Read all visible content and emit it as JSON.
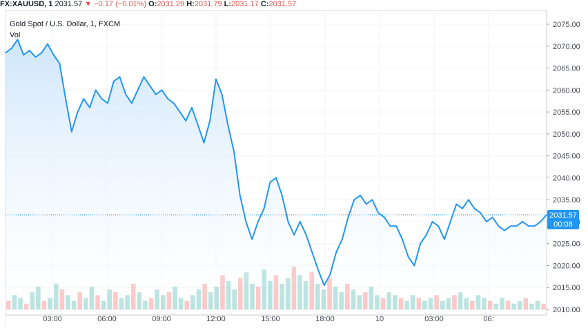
{
  "header": {
    "symbol": "FX:XAUUSD, 1",
    "last": "2031.57",
    "arrow": "▼",
    "change": "−0.17 (−0.01%)",
    "o_label": "O:",
    "o_val": "2031.29",
    "h_label": "H:",
    "h_val": "2031.79",
    "l_label": "L:",
    "l_val": "2031.17",
    "c_label": "C:",
    "c_val": "2031.57"
  },
  "legend": {
    "title": "Gold Spot / U.S. Dollar, 1, FXCM",
    "vol": "Vol"
  },
  "price_label": {
    "value": "2031.57",
    "countdown": "00:08"
  },
  "colors": {
    "line": "#2196f3",
    "area_top": "#cfe6fb",
    "area_bottom": "#ffffff",
    "vol_up": "#26a69a",
    "vol_down": "#ef5350",
    "price_tag": "#2196f3",
    "grid": "#f0f3fa",
    "axis_text": "#434651",
    "change_red": "#e0564f"
  },
  "chart_data": {
    "type": "area",
    "title": "Gold Spot / U.S. Dollar, 1, FXCM",
    "xlabel": "",
    "ylabel": "",
    "ylim": [
      2010,
      2078
    ],
    "grid": true,
    "x_tick_labels": [
      "03:00",
      "06:00",
      "09:00",
      "12:00",
      "15:00",
      "18:00",
      "10",
      "03:00",
      "06:"
    ],
    "y_tick_labels": [
      "2075.00",
      "2070.00",
      "2065.00",
      "2060.00",
      "2055.00",
      "2050.00",
      "2045.00",
      "2040.00",
      "2035.00",
      "2030.00",
      "2025.00",
      "2020.00",
      "2015.00",
      "2010.00"
    ],
    "current_price": 2031.57,
    "series": [
      {
        "values": [
          2068.5,
          2069.5,
          2071.5,
          2068,
          2069,
          2067.5,
          2068.5,
          2070.5,
          2068,
          2066,
          2058,
          2050.5,
          2055,
          2058,
          2056,
          2060,
          2058,
          2057,
          2062,
          2063,
          2059,
          2057,
          2060,
          2063,
          2061,
          2059,
          2060,
          2058,
          2057,
          2055,
          2053,
          2056,
          2052,
          2048,
          2053,
          2062.5,
          2059,
          2052,
          2046,
          2036,
          2030,
          2026,
          2030,
          2033,
          2039,
          2040,
          2036,
          2030,
          2027,
          2030,
          2027,
          2023,
          2019,
          2015.5,
          2018,
          2023,
          2026,
          2031,
          2035,
          2036,
          2034,
          2035,
          2032,
          2031,
          2029,
          2029,
          2026,
          2022,
          2020,
          2025,
          2027,
          2030,
          2029,
          2026,
          2030,
          2034,
          2033,
          2035,
          2033,
          2032,
          2030,
          2031,
          2029,
          2028,
          2029,
          2029,
          2030,
          2029,
          2029,
          2030,
          2031.57
        ]
      }
    ],
    "volume": [
      3,
      5,
      4,
      2,
      6,
      8,
      3,
      4,
      9,
      7,
      5,
      3,
      6,
      4,
      8,
      5,
      3,
      7,
      6,
      4,
      5,
      9,
      6,
      3,
      4,
      7,
      5,
      6,
      8,
      4,
      3,
      5,
      7,
      9,
      6,
      8,
      12,
      10,
      7,
      11,
      13,
      9,
      8,
      14,
      10,
      12,
      9,
      11,
      15,
      12,
      10,
      13,
      9,
      7,
      11,
      8,
      6,
      9,
      7,
      5,
      6,
      8,
      5,
      4,
      6,
      5,
      4,
      3,
      5,
      4,
      3,
      4,
      5,
      3,
      4,
      5,
      6,
      4,
      3,
      5,
      4,
      3,
      2,
      4,
      3,
      2,
      3,
      4,
      2,
      3,
      2
    ]
  }
}
